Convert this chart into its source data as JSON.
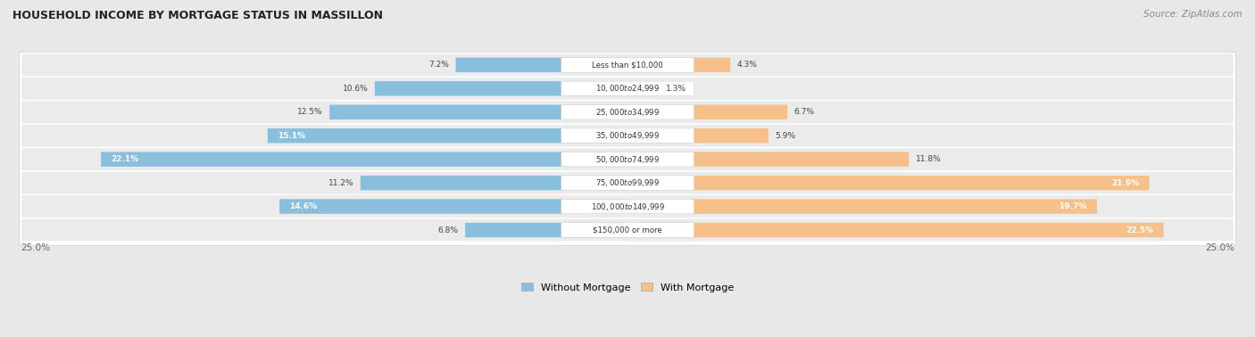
{
  "title": "HOUSEHOLD INCOME BY MORTGAGE STATUS IN MASSILLON",
  "source": "Source: ZipAtlas.com",
  "categories": [
    "Less than $10,000",
    "$10,000 to $24,999",
    "$25,000 to $34,999",
    "$35,000 to $49,999",
    "$50,000 to $74,999",
    "$75,000 to $99,999",
    "$100,000 to $149,999",
    "$150,000 or more"
  ],
  "without_mortgage": [
    7.2,
    10.6,
    12.5,
    15.1,
    22.1,
    11.2,
    14.6,
    6.8
  ],
  "with_mortgage": [
    4.3,
    1.3,
    6.7,
    5.9,
    11.8,
    21.9,
    19.7,
    22.5
  ],
  "without_mortgage_color": "#89bedd",
  "with_mortgage_color": "#f5c08a",
  "background_color": "#e8e8e8",
  "row_bg_light": "#f5f5f5",
  "row_bg_dark": "#e0e0e8",
  "max_val": 25.0,
  "legend_without": "Without Mortgage",
  "legend_with": "With Mortgage",
  "axis_label": "25.0%"
}
